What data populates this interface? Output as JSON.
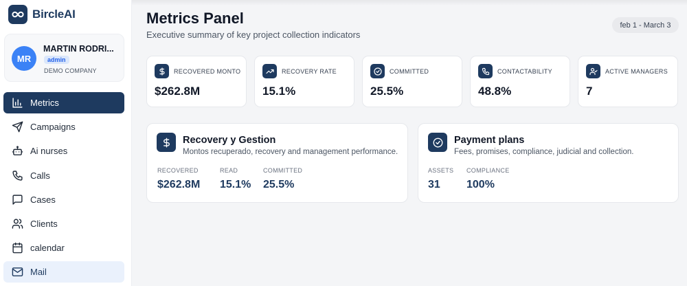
{
  "brand": {
    "name": "BircleAI",
    "logo_icon": "infinity-icon"
  },
  "user": {
    "initials": "MR",
    "name": "MARTIN RODRI...",
    "role": "admin",
    "company": "DEMO COMPANY"
  },
  "nav": {
    "items": [
      {
        "label": "Metrics",
        "icon": "bar-chart-icon"
      },
      {
        "label": "Campaigns",
        "icon": "send-icon"
      },
      {
        "label": "Ai nurses",
        "icon": "bot-icon"
      },
      {
        "label": "Calls",
        "icon": "phone-icon"
      },
      {
        "label": "Cases",
        "icon": "message-square-icon"
      },
      {
        "label": "Clients",
        "icon": "users-icon"
      },
      {
        "label": "calendar",
        "icon": "calendar-icon"
      },
      {
        "label": "Mail",
        "icon": "mail-icon"
      }
    ],
    "active_index": 0,
    "hover_index": 7
  },
  "header": {
    "title": "Metrics Panel",
    "subtitle": "Executive summary of key project collection indicators",
    "date_range": "feb 1 - March 3"
  },
  "kpis": [
    {
      "label": "RECOVERED MONTO",
      "value": "$262.8M",
      "icon": "dollar-icon"
    },
    {
      "label": "RECOVERY RATE",
      "value": "15.1%",
      "icon": "trending-up-icon"
    },
    {
      "label": "COMMITTED",
      "value": "25.5%",
      "icon": "check-circle-icon"
    },
    {
      "label": "CONTACTABILITY",
      "value": "48.8%",
      "icon": "phone-icon"
    },
    {
      "label": "ACTIVE MANAGERS",
      "value": "7",
      "icon": "user-check-icon"
    }
  ],
  "sections": [
    {
      "title": "Recovery y Gestion",
      "description": "Montos recuperado, recovery and management performance.",
      "icon": "dollar-icon",
      "stats": [
        {
          "label": "RECOVERED",
          "value": "$262.8M"
        },
        {
          "label": "READ",
          "value": "15.1%"
        },
        {
          "label": "COMMITTED",
          "value": "25.5%"
        }
      ]
    },
    {
      "title": "Payment plans",
      "description": "Fees, promises, compliance, judicial and collection.",
      "icon": "check-circle-icon",
      "stats": [
        {
          "label": "ASSETS",
          "value": "31"
        },
        {
          "label": "COMPLIANCE",
          "value": "100%"
        }
      ]
    }
  ],
  "colors": {
    "primary": "#1e3a5f",
    "accent": "#3b82f6",
    "background": "#f4f5f7"
  }
}
